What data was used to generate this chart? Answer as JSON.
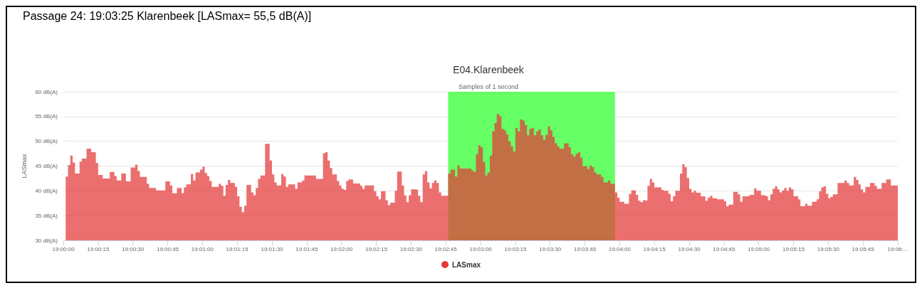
{
  "chart_data": {
    "type": "area",
    "title": "E04.Klarenbeek",
    "subtitle": "Samples of 1 second",
    "ylabel": "LASmax",
    "annotations": [
      "Passage 24:  19:03:25 Klarenbeek [LASmax= 55,5 dB(A)]"
    ],
    "legend": "bottom",
    "grid": "y",
    "marker": "none",
    "xlim": [
      19,
      19.1
    ],
    "ylim": [
      30,
      60
    ],
    "xticks": [
      {
        "value": 19,
        "label": "19:00:00"
      },
      {
        "value": 19.00417,
        "label": "19:00:15"
      },
      {
        "value": 19.00833,
        "label": "19:00:30"
      },
      {
        "value": 19.0125,
        "label": "19:00:45"
      },
      {
        "value": 19.01667,
        "label": "19:01:00"
      },
      {
        "value": 19.02083,
        "label": "19:01:15"
      },
      {
        "value": 19.025,
        "label": "19:01:30"
      },
      {
        "value": 19.02917,
        "label": "19:01:45"
      },
      {
        "value": 19.03333,
        "label": "19:02:00"
      },
      {
        "value": 19.0375,
        "label": "19:02:15"
      },
      {
        "value": 19.04167,
        "label": "19:02:30"
      },
      {
        "value": 19.04583,
        "label": "19:02:45"
      },
      {
        "value": 19.05,
        "label": "19:03:00"
      },
      {
        "value": 19.05417,
        "label": "19:03:15"
      },
      {
        "value": 19.05833,
        "label": "19:03:30"
      },
      {
        "value": 19.0625,
        "label": "19:03:45"
      },
      {
        "value": 19.06667,
        "label": "19:04:00"
      },
      {
        "value": 19.07083,
        "label": "19:04:15"
      },
      {
        "value": 19.075,
        "label": "19:04:30"
      },
      {
        "value": 19.07917,
        "label": "19:04:45"
      },
      {
        "value": 19.08333,
        "label": "19:05:00"
      },
      {
        "value": 19.0875,
        "label": "19:05:15"
      },
      {
        "value": 19.09167,
        "label": "19:05:30"
      },
      {
        "value": 19.09583,
        "label": "19:05:45"
      },
      {
        "value": 19.1,
        "label": "19:06:..."
      }
    ],
    "yticks": [
      {
        "value": 30,
        "label": "30 dB(A)"
      },
      {
        "value": 35,
        "label": "35 dB(A)"
      },
      {
        "value": 40,
        "label": "40 dB(A)"
      },
      {
        "value": 45,
        "label": "45 dB(A)"
      },
      {
        "value": 50,
        "label": "50 dB(A)"
      },
      {
        "value": 55,
        "label": "55 dB(A)"
      },
      {
        "value": 60,
        "label": "60 dB(A)"
      }
    ],
    "bands": [
      {
        "axis": "x",
        "from": 19.04611,
        "to": 19.06611,
        "color": "#66ff66"
      }
    ],
    "series": [
      {
        "name": "LASmax",
        "color": "#e53a3a",
        "x": [
          19.00028,
          19.00056,
          19.00083,
          19.00111,
          19.00139,
          19.00194,
          19.00222,
          19.00278,
          19.00333,
          19.00389,
          19.00417,
          19.00472,
          19.00556,
          19.00611,
          19.00639,
          19.00694,
          19.0075,
          19.00806,
          19.00861,
          19.00889,
          19.00917,
          19.01,
          19.01028,
          19.01111,
          19.01222,
          19.01278,
          19.01306,
          19.01361,
          19.01417,
          19.01444,
          19.01472,
          19.01528,
          19.01556,
          19.01583,
          19.01639,
          19.01667,
          19.01694,
          19.01722,
          19.0175,
          19.01778,
          19.01861,
          19.01889,
          19.01917,
          19.01944,
          19.01972,
          19.02,
          19.02056,
          19.02083,
          19.02111,
          19.02139,
          19.02167,
          19.02194,
          19.0225,
          19.02278,
          19.02306,
          19.02333,
          19.02361,
          19.02417,
          19.02472,
          19.025,
          19.02528,
          19.02556,
          19.02611,
          19.02639,
          19.02667,
          19.02694,
          19.02778,
          19.02806,
          19.02861,
          19.02889,
          19.03028,
          19.03111,
          19.03139,
          19.03167,
          19.03194,
          19.03222,
          19.03278,
          19.03306,
          19.03333,
          19.03361,
          19.03389,
          19.03417,
          19.03472,
          19.03556,
          19.03583,
          19.03611,
          19.03722,
          19.0375,
          19.03778,
          19.03806,
          19.03861,
          19.03889,
          19.03917,
          19.03972,
          19.04,
          19.04056,
          19.04083,
          19.04111,
          19.04139,
          19.04167,
          19.04222,
          19.0425,
          19.04278,
          19.04306,
          19.04333,
          19.04361,
          19.04389,
          19.04417,
          19.04444,
          19.04472,
          19.045,
          19.04528,
          19.04611,
          19.04639,
          19.04694,
          19.04722,
          19.0475,
          19.04889,
          19.04917,
          19.04944,
          19.04972,
          19.05,
          19.05028,
          19.05056,
          19.05083,
          19.05111,
          19.05139,
          19.05167,
          19.05194,
          19.05222,
          19.0525,
          19.05278,
          19.05306,
          19.05333,
          19.05361,
          19.05389,
          19.05417,
          19.05444,
          19.05472,
          19.055,
          19.05528,
          19.05556,
          19.05583,
          19.05611,
          19.05639,
          19.05667,
          19.05694,
          19.05722,
          19.0575,
          19.05778,
          19.05806,
          19.05833,
          19.05861,
          19.05889,
          19.05917,
          19.05944,
          19.06,
          19.06056,
          19.06083,
          19.06111,
          19.06139,
          19.06167,
          19.06194,
          19.06222,
          19.06278,
          19.06306,
          19.06333,
          19.06361,
          19.06389,
          19.06444,
          19.06472,
          19.06528,
          19.06556,
          19.06611,
          19.06639,
          19.06667,
          19.06722,
          19.06778,
          19.06806,
          19.06861,
          19.06889,
          19.06917,
          19.06944,
          19.06972,
          19.07,
          19.07028,
          19.07056,
          19.07083,
          19.07167,
          19.07194,
          19.0725,
          19.07278,
          19.07306,
          19.07333,
          19.07389,
          19.07417,
          19.07444,
          19.07472,
          19.075,
          19.07528,
          19.07556,
          19.07583,
          19.07639,
          19.07694,
          19.07722,
          19.0775,
          19.07778,
          19.07833,
          19.07917,
          19.07944,
          19.07972,
          19.08028,
          19.08083,
          19.08111,
          19.08139,
          19.08222,
          19.08278,
          19.08306,
          19.08361,
          19.08417,
          19.08444,
          19.08472,
          19.085,
          19.08528,
          19.08556,
          19.08583,
          19.08611,
          19.08639,
          19.08667,
          19.08694,
          19.08722,
          19.0875,
          19.08806,
          19.08833,
          19.08889,
          19.08917,
          19.08972,
          19.09028,
          19.09056,
          19.09083,
          19.09111,
          19.09139,
          19.09167,
          19.09194,
          19.09222,
          19.09278,
          19.09361,
          19.09389,
          19.09417,
          19.09472,
          19.095,
          19.09528,
          19.09556,
          19.09583,
          19.09611,
          19.09667,
          19.09722,
          19.0975,
          19.09806,
          19.09861,
          19.09917,
          19.1
        ],
        "values": [
          42.9,
          45.2,
          47.1,
          45.7,
          43.5,
          45.9,
          46.5,
          48.5,
          47.8,
          45.6,
          43.2,
          42.5,
          43.8,
          43.0,
          42.1,
          43.5,
          41.9,
          44.7,
          45.3,
          44.0,
          42.8,
          41.4,
          40.6,
          40.1,
          41.9,
          41.1,
          39.5,
          40.6,
          39.5,
          40.7,
          41.3,
          43.4,
          42.1,
          43.7,
          44.3,
          44.9,
          43.6,
          43.0,
          42.0,
          40.8,
          41.4,
          41.0,
          39.0,
          41.2,
          42.2,
          41.6,
          40.8,
          38.9,
          36.8,
          35.7,
          37.0,
          41.2,
          39.7,
          39.1,
          40.6,
          42.4,
          43.1,
          49.5,
          46.1,
          43.3,
          41.7,
          41.1,
          43.4,
          42.9,
          40.8,
          41.3,
          40.4,
          41.7,
          42.1,
          43.1,
          42.4,
          47.6,
          47.8,
          46.1,
          44.6,
          43.3,
          42.0,
          41.1,
          40.4,
          40.2,
          42.0,
          42.3,
          41.5,
          41.0,
          40.4,
          41.1,
          39.9,
          38.9,
          38.3,
          39.9,
          38.1,
          37.1,
          37.6,
          40.0,
          43.9,
          41.1,
          39.1,
          37.7,
          39.1,
          40.3,
          40.2,
          39.0,
          37.7,
          43.3,
          44.0,
          41.7,
          40.5,
          41.6,
          42.1,
          41.6,
          39.7,
          39.0,
          43.5,
          44.3,
          42.9,
          45.1,
          44.5,
          44.1,
          43.8,
          47.4,
          49.2,
          48.8,
          45.8,
          43.1,
          43.7,
          47.1,
          52.0,
          53.7,
          55.5,
          55.1,
          52.5,
          52.2,
          51.4,
          50.0,
          49.0,
          47.9,
          52.7,
          52.0,
          54.4,
          54.2,
          53.3,
          51.2,
          52.5,
          52.7,
          51.2,
          52.0,
          52.4,
          51.2,
          50.3,
          51.3,
          53.0,
          52.2,
          50.9,
          49.6,
          49.0,
          48.5,
          49.6,
          48.8,
          47.4,
          46.9,
          47.5,
          47.8,
          46.7,
          45.0,
          44.4,
          45.1,
          44.8,
          43.7,
          43.3,
          42.8,
          41.7,
          42.1,
          41.4,
          39.7,
          38.6,
          37.8,
          37.4,
          39.4,
          40.1,
          39.2,
          38.0,
          37.7,
          38.1,
          38.0,
          41.0,
          42.4,
          41.7,
          40.7,
          40.2,
          40.0,
          39.4,
          37.9,
          38.9,
          40.0,
          43.5,
          45.4,
          44.8,
          42.6,
          40.4,
          39.7,
          40.0,
          39.6,
          38.9,
          38.0,
          38.6,
          39.0,
          38.5,
          38.3,
          37.9,
          36.9,
          37.2,
          39.8,
          39.3,
          37.8,
          38.9,
          39.2,
          40.5,
          40.0,
          39.1,
          38.9,
          38.1,
          39.3,
          40.4,
          40.9,
          40.3,
          39.7,
          40.1,
          40.6,
          40.0,
          40.7,
          40.3,
          38.9,
          38.3,
          36.9,
          37.4,
          37.0,
          37.8,
          38.3,
          39.9,
          40.7,
          40.9,
          39.4,
          38.5,
          38.8,
          39.3,
          41.6,
          42.1,
          41.6,
          41.1,
          42.8,
          42.2,
          41.3,
          40.3,
          39.7,
          40.8,
          41.6,
          41.0,
          40.4,
          41.6,
          42.3,
          41.1,
          41.1
        ]
      }
    ]
  }
}
